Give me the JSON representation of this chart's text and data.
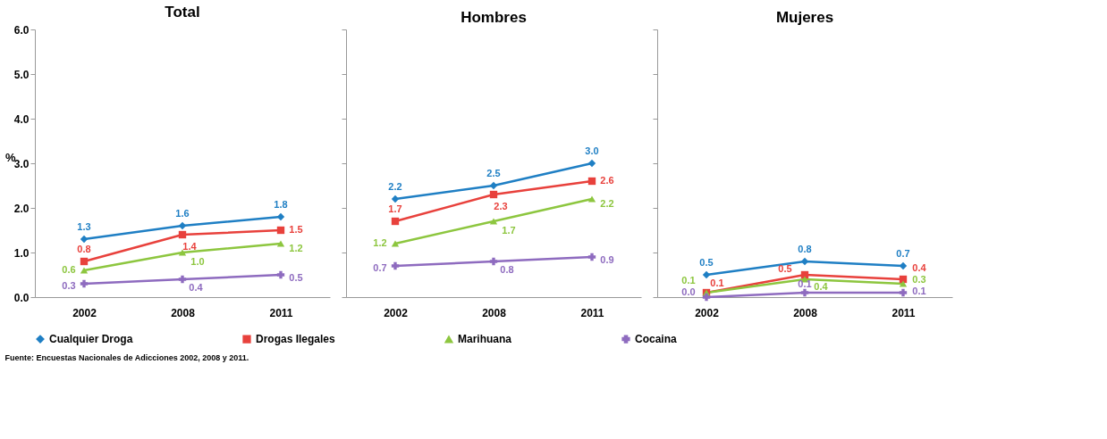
{
  "chart_data": [
    {
      "type": "line",
      "title": "Total",
      "categories": [
        "2002",
        "2008",
        "2011"
      ],
      "ylabel": "%",
      "ylim": [
        0,
        6
      ],
      "yticks": [
        {
          "value": 0,
          "label": "0.0"
        },
        {
          "value": 1,
          "label": "1.0"
        },
        {
          "value": 2,
          "label": "2.0"
        },
        {
          "value": 3,
          "label": "3.0"
        },
        {
          "value": 4,
          "label": "4.0"
        },
        {
          "value": 5,
          "label": "5.0"
        },
        {
          "value": 6,
          "label": "6.0"
        }
      ],
      "grid": false,
      "legend": "bottom",
      "series": [
        {
          "name": "Cualquier Droga",
          "color": "#1f7fc4",
          "marker": "diamond",
          "values": [
            1.3,
            1.6,
            1.8
          ],
          "value_labels": [
            "1.3",
            "1.6",
            "1.8"
          ]
        },
        {
          "name": "Drogas Ilegales",
          "color": "#e8413c",
          "marker": "square",
          "values": [
            0.8,
            1.4,
            1.5
          ],
          "value_labels": [
            "0.8",
            "1.4",
            "1.5"
          ]
        },
        {
          "name": "Marihuana",
          "color": "#8dc63f",
          "marker": "triangle",
          "values": [
            0.6,
            1.0,
            1.2
          ],
          "value_labels": [
            "0.6",
            "1.0",
            "1.2"
          ]
        },
        {
          "name": "Cocaina",
          "color": "#8e6bbf",
          "marker": "cross",
          "values": [
            0.3,
            0.4,
            0.5
          ],
          "value_labels": [
            "0.3",
            "0.4",
            "0.5"
          ]
        }
      ],
      "annotations": [
        "Fuente: Encuestas Nacionales de Adicciones 2002, 2008 y 2011."
      ]
    },
    {
      "type": "line",
      "title": "Hombres",
      "categories": [
        "2002",
        "2008",
        "2011"
      ],
      "ylim": [
        0,
        6
      ],
      "tick_labels": "x",
      "grid": false,
      "series": [
        {
          "name": "Cualquier Droga",
          "color": "#1f7fc4",
          "marker": "diamond",
          "values": [
            2.2,
            2.5,
            3.0
          ],
          "value_labels": [
            "2.2",
            "2.5",
            "3.0"
          ]
        },
        {
          "name": "Drogas Ilegales",
          "color": "#e8413c",
          "marker": "square",
          "values": [
            1.7,
            2.3,
            2.6
          ],
          "value_labels": [
            "1.7",
            "2.3",
            "2.6"
          ]
        },
        {
          "name": "Marihuana",
          "color": "#8dc63f",
          "marker": "triangle",
          "values": [
            1.2,
            1.7,
            2.2
          ],
          "value_labels": [
            "1.2",
            "1.7",
            "2.2"
          ]
        },
        {
          "name": "Cocaina",
          "color": "#8e6bbf",
          "marker": "cross",
          "values": [
            0.7,
            0.8,
            0.9
          ],
          "value_labels": [
            "0.7",
            "0.8",
            "0.9"
          ]
        }
      ]
    },
    {
      "type": "line",
      "title": "Mujeres",
      "categories": [
        "2002",
        "2008",
        "2011"
      ],
      "ylim": [
        0,
        6
      ],
      "tick_labels": "x",
      "grid": false,
      "series": [
        {
          "name": "Cualquier Droga",
          "color": "#1f7fc4",
          "marker": "diamond",
          "values": [
            0.5,
            0.8,
            0.7
          ],
          "value_labels": [
            "0.5",
            "0.8",
            "0.7"
          ]
        },
        {
          "name": "Drogas Ilegales",
          "color": "#e8413c",
          "marker": "square",
          "values": [
            0.1,
            0.5,
            0.4
          ],
          "value_labels": [
            "0.1",
            "0.5",
            "0.4"
          ]
        },
        {
          "name": "Marihuana",
          "color": "#8dc63f",
          "marker": "triangle",
          "values": [
            0.1,
            0.4,
            0.3
          ],
          "value_labels": [
            "0.1",
            "0.4",
            "0.3"
          ]
        },
        {
          "name": "Cocaina",
          "color": "#8e6bbf",
          "marker": "cross",
          "values": [
            0.0,
            0.1,
            0.1
          ],
          "value_labels": [
            "0.0",
            "0.1",
            "0.1"
          ]
        }
      ]
    }
  ]
}
